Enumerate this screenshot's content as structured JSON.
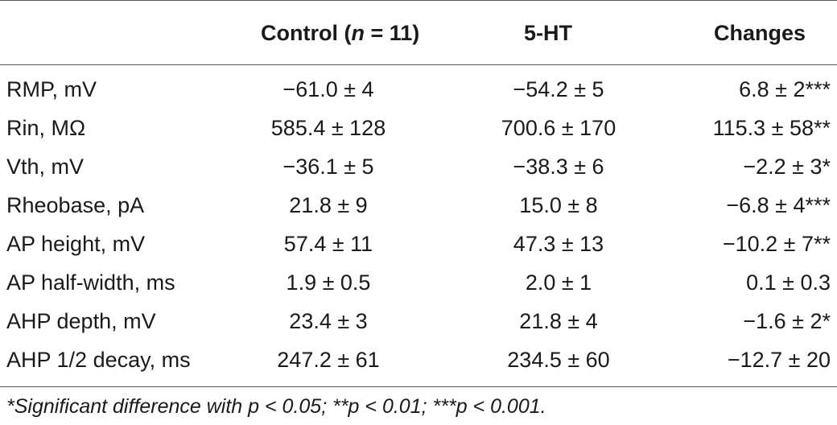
{
  "table": {
    "headers": {
      "control_prefix": "Control (",
      "control_n": "n",
      "control_suffix": " = 11)",
      "treatment": "5-HT",
      "changes": "Changes"
    },
    "rows": [
      {
        "label": "RMP, mV",
        "control": "−61.0 ± 4",
        "treatment": "−54.2 ± 5",
        "changes": "6.8 ± 2***"
      },
      {
        "label": "Rin, MΩ",
        "control": "585.4 ± 128",
        "treatment": "700.6 ± 170",
        "changes": "115.3 ± 58**"
      },
      {
        "label": "Vth, mV",
        "control": "−36.1 ± 5",
        "treatment": "−38.3 ± 6",
        "changes": "−2.2 ± 3*"
      },
      {
        "label": "Rheobase, pA",
        "control": "21.8 ± 9",
        "treatment": "15.0 ± 8",
        "changes": "−6.8 ± 4***"
      },
      {
        "label": "AP height, mV",
        "control": "57.4 ± 11",
        "treatment": "47.3 ± 13",
        "changes": "−10.2 ± 7**"
      },
      {
        "label": "AP half-width, ms",
        "control": "1.9 ± 0.5",
        "treatment": "2.0 ± 1",
        "changes": "0.1 ± 0.3"
      },
      {
        "label": "AHP depth, mV",
        "control": "23.4 ± 3",
        "treatment": "21.8 ± 4",
        "changes": "−1.6 ± 2*"
      },
      {
        "label": "AHP 1/2 decay, ms",
        "control": "247.2 ± 61",
        "treatment": "234.5 ± 60",
        "changes": "−12.7 ± 20"
      }
    ],
    "footnote": "*Significant difference with p < 0.05; **p < 0.01; ***p < 0.001."
  }
}
